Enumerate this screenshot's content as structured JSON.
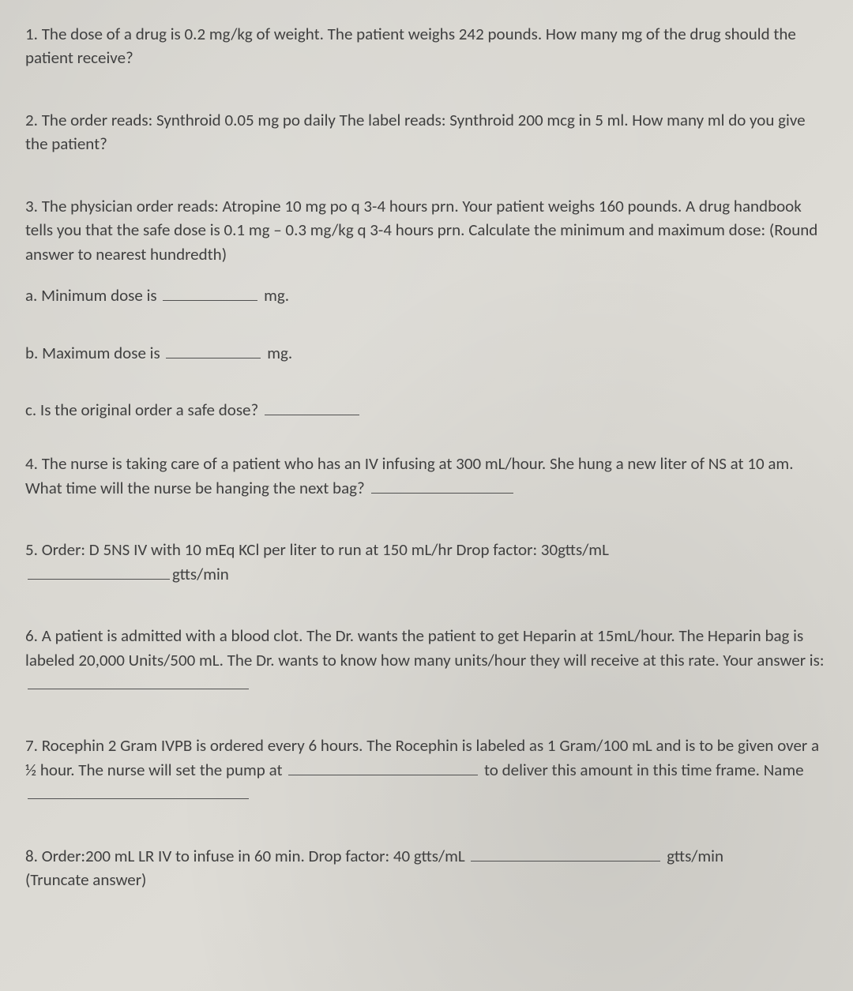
{
  "page": {
    "background_color": "#d6d4ce",
    "text_color": "#404040",
    "font_family": "Calibri",
    "font_size": 21
  },
  "questions": {
    "q1": {
      "text": "1. The dose of a drug is 0.2 mg/kg of weight. The patient weighs 242 pounds. How many mg of the drug should the patient receive?"
    },
    "q2": {
      "text": "2. The order reads: Synthroid 0.05 mg po daily The label reads: Synthroid 200 mcg in 5 ml. How many ml do you give the patient?"
    },
    "q3": {
      "text": "3. The physician order reads: Atropine 10 mg po q 3-4 hours prn. Your patient weighs 160 pounds. A drug handbook tells you that the safe dose is 0.1 mg – 0.3 mg/kg q 3-4 hours prn. Calculate the minimum and maximum dose: (Round answer to nearest hundredth)",
      "a_prefix": "a. Minimum dose is ",
      "a_suffix": " mg.",
      "b_prefix": "b. Maximum dose is ",
      "b_suffix": " mg.",
      "c_prefix": "c. Is the original order a safe dose? "
    },
    "q4": {
      "prefix": "4. The nurse is taking care of a patient who has an IV infusing at 300 mL/hour. She hung a new liter of NS at 10 am. What time will the nurse be hanging the next bag? "
    },
    "q5": {
      "line1": "5. Order: D 5NS IV with 10 mEq KCl per liter to run at 150 mL/hr Drop factor: 30gtts/mL",
      "suffix": "gtts/min"
    },
    "q6": {
      "prefix": "6. A patient is admitted with a blood clot. The Dr. wants the patient to get Heparin at 15mL/hour. The Heparin bag is labeled 20,000 Units/500 mL. The Dr. wants to know how many units/hour they will receive at this rate. Your answer is: "
    },
    "q7": {
      "part1": "7. Rocephin 2 Gram IVPB is ordered every 6 hours. The Rocephin is labeled as 1 Gram/100 mL and is to be given over a ½ hour. The nurse will set the pump at ",
      "part2": " to deliver this amount in this time frame. Name"
    },
    "q8": {
      "prefix": "8. Order:200 mL LR IV to infuse in 60 min. Drop factor: 40 gtts/mL ",
      "suffix": " gtts/min",
      "note": "(Truncate answer)"
    }
  }
}
